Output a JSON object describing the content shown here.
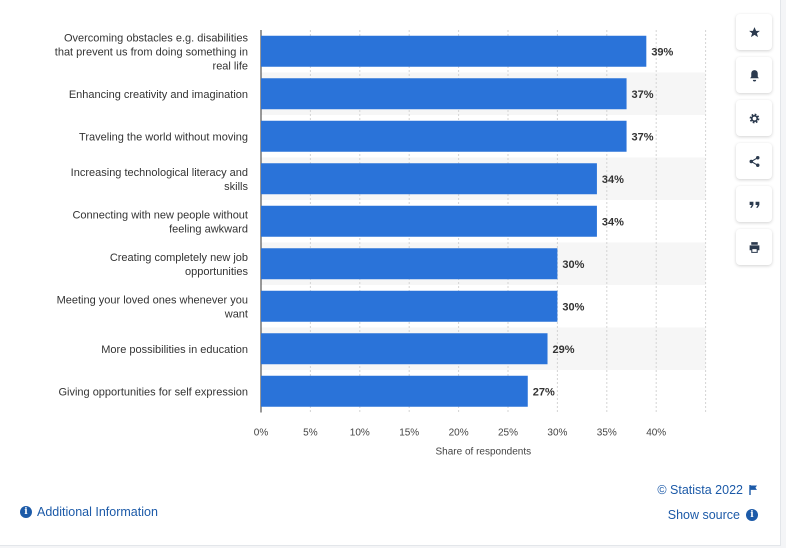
{
  "chart_data": {
    "type": "bar",
    "orientation": "horizontal",
    "categories": [
      "Overcoming obstacles e.g. disabilities that prevent us from doing something in real life",
      "Enhancing creativity and imagination",
      "Traveling the world without moving",
      "Increasing technological literacy and skills",
      "Connecting with new people without feeling awkward",
      "Creating completely new job opportunities",
      "Meeting your loved ones whenever you want",
      "More possibilities in education",
      "Giving opportunities for self expression"
    ],
    "category_lines": [
      [
        "Overcoming obstacles e.g. disabilities",
        "that prevent us from doing something in",
        "real life"
      ],
      [
        "Enhancing creativity and imagination"
      ],
      [
        "Traveling the world without moving"
      ],
      [
        "Increasing technological literacy and",
        "skills"
      ],
      [
        "Connecting with new people without",
        "feeling awkward"
      ],
      [
        "Creating completely new job",
        "opportunities"
      ],
      [
        "Meeting your loved ones whenever you",
        "want"
      ],
      [
        "More possibilities in education"
      ],
      [
        "Giving opportunities for self expression"
      ]
    ],
    "values": [
      39,
      37,
      37,
      34,
      34,
      30,
      30,
      29,
      27
    ],
    "value_labels": [
      "39%",
      "37%",
      "37%",
      "34%",
      "34%",
      "30%",
      "30%",
      "29%",
      "27%"
    ],
    "xticks": [
      0,
      5,
      10,
      15,
      20,
      25,
      30,
      35,
      40
    ],
    "xtick_labels": [
      "0%",
      "5%",
      "10%",
      "15%",
      "20%",
      "25%",
      "30%",
      "35%",
      "40%"
    ],
    "xlim": [
      0,
      45
    ],
    "xlabel": "Share of respondents",
    "ylabel": "",
    "title": "",
    "bar_color": "#2a73d9",
    "grid": true,
    "legend": false
  },
  "toolbar": {
    "icons": [
      "star-icon",
      "bell-icon",
      "gear-icon",
      "share-icon",
      "quote-icon",
      "print-icon"
    ]
  },
  "footer": {
    "additional_info": "Additional Information",
    "copyright": "© Statista 2022",
    "show_source": "Show source",
    "link_color": "#1c5aa8"
  }
}
